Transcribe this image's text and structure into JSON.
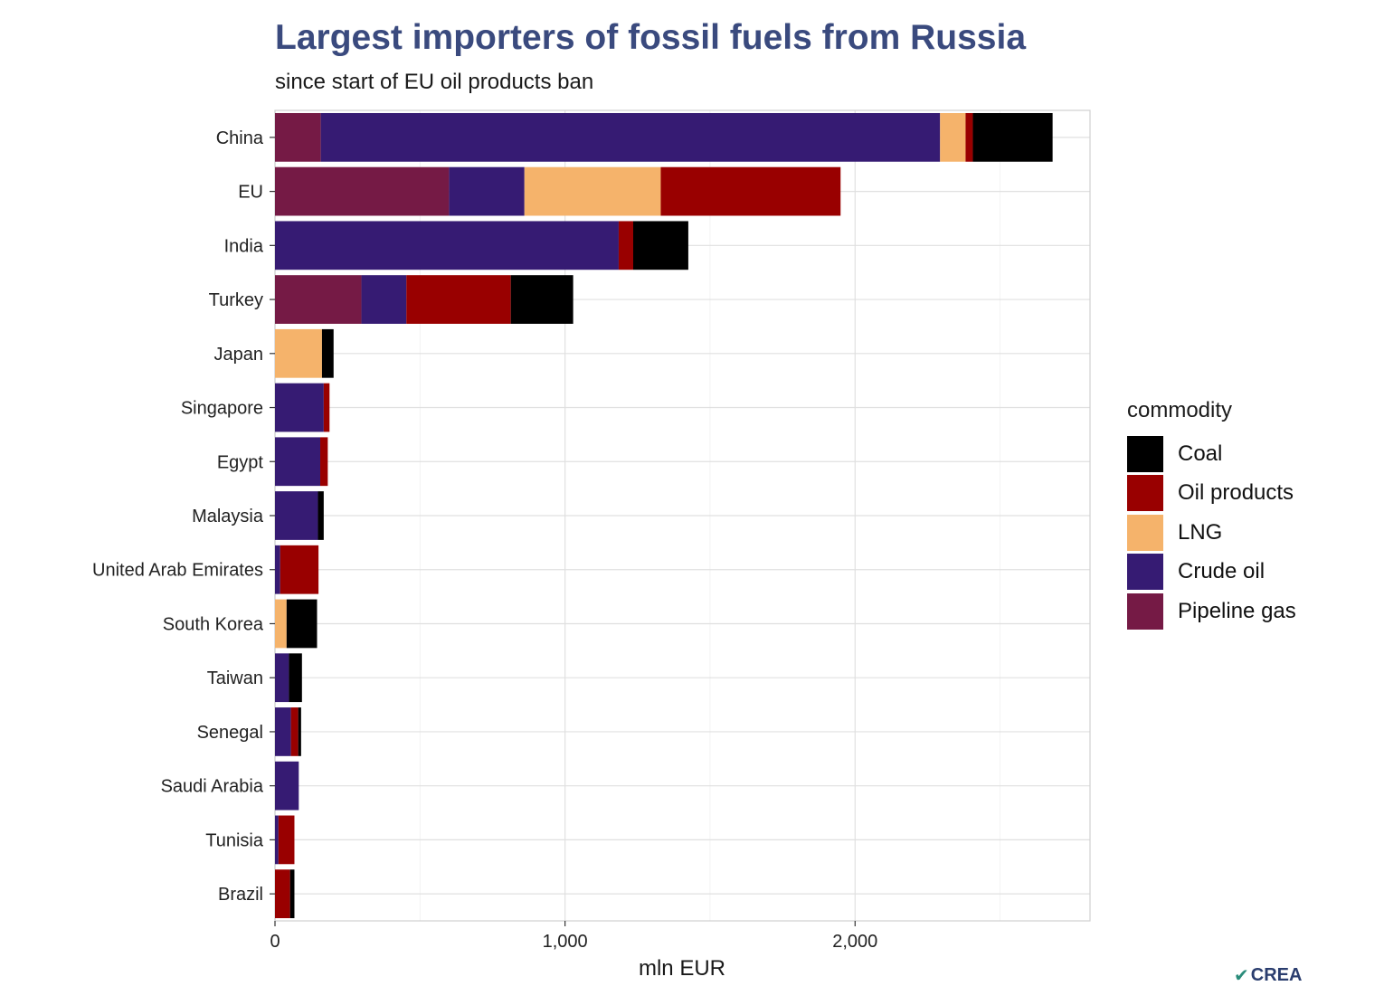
{
  "title": "Largest importers of fossil fuels from Russia",
  "subtitle": "since start of EU oil products ban",
  "logo_text": "CREA",
  "chart_data": {
    "type": "bar",
    "orientation": "horizontal",
    "stacked": true,
    "categories": [
      "China",
      "EU",
      "India",
      "Turkey",
      "Japan",
      "Singapore",
      "Egypt",
      "Malaysia",
      "United Arab Emirates",
      "South Korea",
      "Taiwan",
      "Senegal",
      "Saudi Arabia",
      "Tunisia",
      "Brazil"
    ],
    "series": [
      {
        "name": "Pipeline gas",
        "color": "#751a45",
        "values": [
          158,
          600,
          0,
          298,
          0,
          0,
          0,
          0,
          0,
          0,
          0,
          0,
          0,
          0,
          0
        ]
      },
      {
        "name": "Crude oil",
        "color": "#361b73",
        "values": [
          2135,
          260,
          1185,
          155,
          0,
          168,
          156,
          148,
          18,
          0,
          48,
          55,
          82,
          12,
          0
        ]
      },
      {
        "name": "LNG",
        "color": "#f5b36b",
        "values": [
          88,
          470,
          0,
          0,
          162,
          0,
          0,
          0,
          0,
          40,
          0,
          0,
          0,
          0,
          0
        ]
      },
      {
        "name": "Oil products",
        "color": "#990000",
        "values": [
          25,
          620,
          50,
          360,
          0,
          20,
          26,
          0,
          132,
          0,
          0,
          25,
          0,
          55,
          52
        ]
      },
      {
        "name": "Coal",
        "color": "#000000",
        "values": [
          275,
          0,
          190,
          215,
          40,
          0,
          0,
          20,
          0,
          105,
          45,
          10,
          0,
          0,
          15
        ]
      }
    ],
    "xlabel": "mln EUR",
    "ylabel": "",
    "xlim": [
      0,
      2810
    ],
    "xticks": [
      0,
      1000,
      2000
    ],
    "xtick_labels": [
      "0",
      "1,000",
      "2,000"
    ],
    "grid": true,
    "legend": {
      "title": "commodity",
      "position": "right",
      "order": [
        "Coal",
        "Oil products",
        "LNG",
        "Crude oil",
        "Pipeline gas"
      ]
    }
  }
}
